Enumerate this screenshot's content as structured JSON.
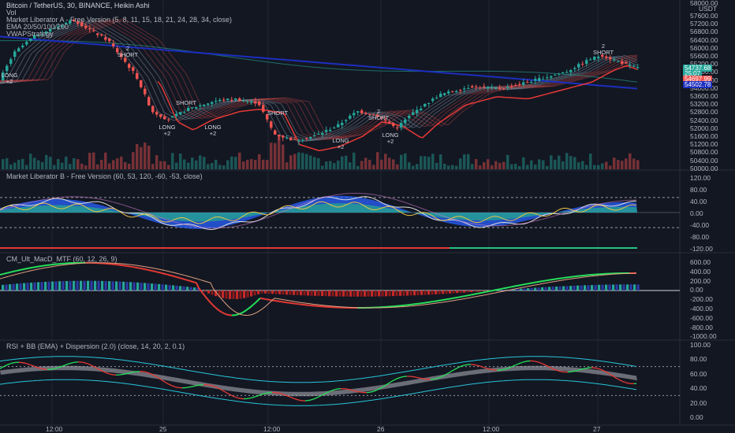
{
  "header": {
    "symbol_line": "Bitcoin / TetherUS, 30, BINANCE, Heikin Ashi",
    "vol": "Vol",
    "indicator1": "Market Liberator A - Free Version (5, 8, 11, 15, 18, 21, 24, 28, 34, close)",
    "indicator2": "EMA 20/50/100/200",
    "indicator3": "VWAPStrategy"
  },
  "pane_titles": {
    "p2": "Market Liberator B - Free Version (60, 53, 120, -60, -53, close)",
    "p3": "CM_Ult_MacD_MTF (60, 12, 26, 9)",
    "p4": "RSI + BB (EMA) + Dispersion (2.0) (close, 14, 20, 2, 0.1)"
  },
  "price_axis": {
    "unit_top": "58000.00",
    "unit_label": "USDT",
    "ticks": [
      "57600.00",
      "57200.00",
      "56800.00",
      "56400.00",
      "56000.00",
      "55600.00",
      "55200.00",
      "54800.00",
      "54400.00",
      "54000.00",
      "53600.00",
      "53200.00",
      "52800.00",
      "52400.00",
      "52000.00",
      "51600.00",
      "51200.00",
      "50800.00",
      "50400.00",
      "50000.00"
    ],
    "last_price": "54737.68",
    "countdown": "25:07",
    "vwap_price": "54697.99",
    "ema_price": "54502.78"
  },
  "osc_axis": [
    "120.00",
    "80.00",
    "40.00",
    "0.00",
    "-40.00",
    "-80.00",
    "-120.00"
  ],
  "macd_axis": [
    "600.00",
    "400.00",
    "200.00",
    "0.00",
    "-200.00",
    "-400.00",
    "-600.00",
    "-800.00",
    "-1000.00"
  ],
  "rsi_axis": [
    "100.00",
    "80.00",
    "60.00",
    "40.00",
    "20.00",
    "0.00"
  ],
  "time_axis": [
    "12:00",
    "25",
    "12:00",
    "26",
    "12:00",
    "27"
  ],
  "signals": [
    {
      "text": "LONG\n+2",
      "kind": "long"
    },
    {
      "text": "2\nSHORT",
      "kind": "short"
    },
    {
      "text": "SHORT",
      "kind": "short"
    },
    {
      "text": "LONG\n+2",
      "kind": "long"
    },
    {
      "text": "LONG\n+2",
      "kind": "long"
    },
    {
      "text": "SHORT",
      "kind": "short"
    },
    {
      "text": "LONG\n+2",
      "kind": "long"
    },
    {
      "text": "2\nSHORT",
      "kind": "short"
    },
    {
      "text": "LONG\n+2",
      "kind": "long"
    },
    {
      "text": "2\nSHORT",
      "kind": "short"
    }
  ],
  "colors": {
    "bg": "#131722",
    "bull": "#26a69a",
    "bear": "#ef5350",
    "vwap": "#1c2fbf",
    "grid": "#1f2433",
    "accent_blue": "#2962ff"
  }
}
